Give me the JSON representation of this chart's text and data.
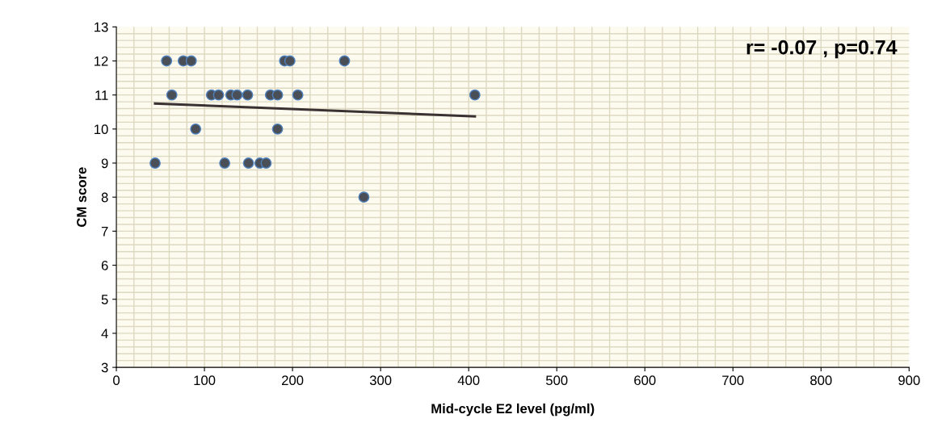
{
  "chart_data": {
    "type": "scatter",
    "xlabel": "Mid-cycle E2 level (pg/ml)",
    "ylabel": "CM score",
    "annotations": [
      "r= -0.07 , p=0.74"
    ],
    "xlim": [
      0,
      900
    ],
    "xticks": [
      0,
      100,
      200,
      300,
      400,
      500,
      600,
      700,
      800,
      900
    ],
    "ylim": [
      3,
      13
    ],
    "yticks": [
      3,
      4,
      5,
      6,
      7,
      8,
      9,
      10,
      11,
      12,
      13
    ],
    "grid": true,
    "series": [
      {
        "marker": "circle",
        "color": "#4a4f57",
        "x": [
          57,
          76,
          85,
          191,
          197,
          259,
          63,
          108,
          116,
          130,
          137,
          149,
          175,
          183,
          206,
          407,
          90,
          183,
          44,
          123,
          150,
          163,
          170,
          281
        ],
        "values": [
          12,
          12,
          12,
          12,
          12,
          12,
          11,
          11,
          11,
          11,
          11,
          11,
          11,
          11,
          11,
          11,
          10,
          10,
          9,
          9,
          9,
          9,
          9,
          8
        ]
      },
      {
        "type": "line",
        "color": "#3a3232",
        "x": [
          44,
          407
        ],
        "values": [
          10.75,
          10.37
        ]
      }
    ]
  }
}
